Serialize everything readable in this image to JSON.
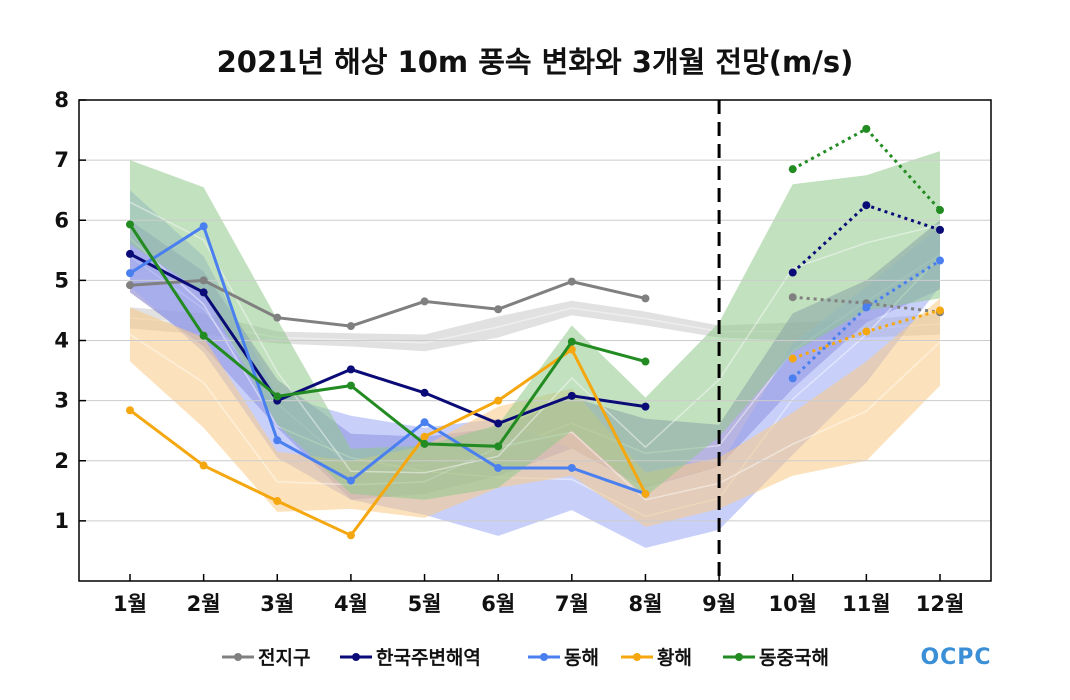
{
  "chart_data": {
    "type": "line",
    "title": "2021년 해상 10m 풍속 변화와 3개월 전망(m/s)",
    "xlabel": "",
    "ylabel": "",
    "categories": [
      "1월",
      "2월",
      "3월",
      "4월",
      "5월",
      "6월",
      "7월",
      "8월",
      "9월",
      "10월",
      "11월",
      "12월"
    ],
    "ylim": [
      0,
      8
    ],
    "yticks": [
      "1",
      "2",
      "3",
      "4",
      "5",
      "6",
      "7",
      "8"
    ],
    "grid": true,
    "forecast_divider_after": "9월",
    "legend_position": "bottom",
    "series": [
      {
        "name": "전지구",
        "color": "#808080",
        "observed": [
          4.92,
          5.0,
          4.38,
          4.24,
          4.65,
          4.52,
          4.98,
          4.7,
          null,
          null,
          null,
          null
        ],
        "forecast": [
          null,
          null,
          null,
          null,
          null,
          null,
          null,
          null,
          null,
          4.72,
          4.62,
          4.47
        ]
      },
      {
        "name": "한국주변해역",
        "color": "#0b0b78",
        "observed": [
          5.44,
          4.8,
          3.0,
          3.52,
          3.13,
          2.62,
          3.08,
          2.9,
          null,
          null,
          null,
          null
        ],
        "forecast": [
          null,
          null,
          null,
          null,
          null,
          null,
          null,
          null,
          null,
          5.13,
          6.25,
          5.84
        ]
      },
      {
        "name": "동해",
        "color": "#4a7ff0",
        "observed": [
          5.12,
          5.9,
          2.34,
          1.67,
          2.64,
          1.88,
          1.88,
          1.45,
          null,
          null,
          null,
          null
        ],
        "forecast": [
          null,
          null,
          null,
          null,
          null,
          null,
          null,
          null,
          null,
          3.37,
          4.55,
          5.33
        ]
      },
      {
        "name": "황해",
        "color": "#f5a70f",
        "observed": [
          2.84,
          1.92,
          1.33,
          0.76,
          2.4,
          3.0,
          3.85,
          1.45,
          null,
          null,
          null,
          null
        ],
        "forecast": [
          null,
          null,
          null,
          null,
          null,
          null,
          null,
          null,
          null,
          3.7,
          4.15,
          4.5
        ]
      },
      {
        "name": "동중국해",
        "color": "#228b22",
        "observed": [
          5.93,
          4.08,
          3.07,
          3.25,
          2.28,
          2.24,
          3.98,
          3.65,
          null,
          null,
          null,
          null
        ],
        "forecast": [
          null,
          null,
          null,
          null,
          null,
          null,
          null,
          null,
          null,
          6.85,
          7.52,
          6.17
        ]
      }
    ],
    "climatology_bands": [
      {
        "name": "전지구",
        "color": "#c8c8c8",
        "low": [
          4.2,
          4.1,
          3.95,
          3.9,
          3.82,
          4.05,
          4.42,
          4.25,
          4.05,
          4.0,
          4.05,
          4.1
        ],
        "high": [
          4.55,
          4.45,
          4.15,
          4.12,
          4.1,
          4.4,
          4.66,
          4.48,
          4.25,
          4.3,
          4.35,
          4.45
        ]
      },
      {
        "name": "한국주변해역",
        "color": "#7e76c8",
        "low": [
          4.8,
          3.9,
          2.55,
          1.35,
          1.45,
          1.75,
          2.2,
          1.55,
          1.9,
          3.2,
          4.3,
          4.85
        ],
        "high": [
          6.0,
          5.15,
          3.35,
          2.45,
          2.4,
          2.55,
          3.05,
          2.7,
          2.6,
          4.45,
          5.0,
          6.0
        ]
      },
      {
        "name": "동해",
        "color": "#9aaaf5",
        "low": [
          4.9,
          3.8,
          2.05,
          1.35,
          1.1,
          0.75,
          1.18,
          0.55,
          0.85,
          2.1,
          3.3,
          4.9
        ],
        "high": [
          6.5,
          5.4,
          3.1,
          2.75,
          2.55,
          2.7,
          2.2,
          1.6,
          1.9,
          3.95,
          4.9,
          5.9
        ]
      },
      {
        "name": "황해",
        "color": "#f9cb85",
        "low": [
          3.65,
          2.55,
          1.15,
          1.2,
          1.05,
          1.55,
          1.75,
          0.9,
          1.2,
          1.75,
          2.0,
          3.25
        ],
        "high": [
          4.55,
          4.05,
          2.15,
          2.0,
          2.25,
          2.9,
          3.2,
          1.8,
          2.05,
          2.8,
          3.65,
          4.7
        ]
      },
      {
        "name": "동중국해",
        "color": "#8fc88a",
        "low": [
          5.6,
          4.8,
          2.6,
          1.45,
          1.35,
          1.55,
          2.5,
          1.4,
          2.4,
          3.8,
          4.5,
          4.7
        ],
        "high": [
          7.0,
          6.55,
          4.35,
          2.2,
          2.25,
          2.6,
          4.25,
          3.05,
          4.3,
          6.6,
          6.75,
          7.15
        ]
      }
    ]
  },
  "logo": {
    "text": "OCPC"
  }
}
